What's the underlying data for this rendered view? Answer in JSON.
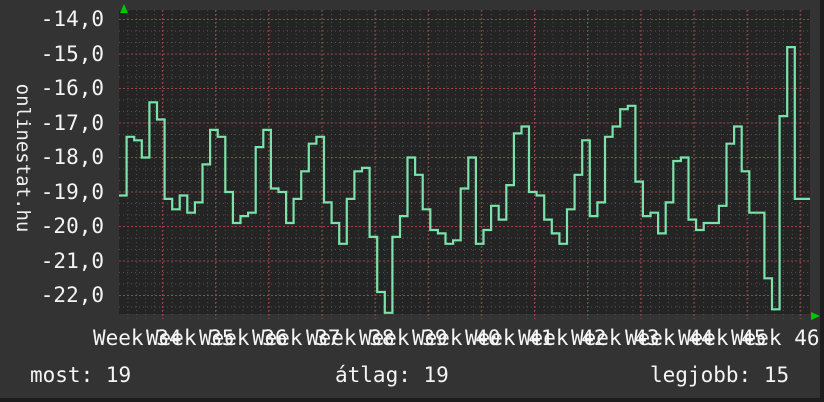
{
  "branding": {
    "site": "onlinestat.hu"
  },
  "stats": {
    "most": {
      "label": "most:",
      "value": "19"
    },
    "atlag": {
      "label": "átlag:",
      "value": "19"
    },
    "legjobb": {
      "label": "legjobb:",
      "value": "15"
    }
  },
  "chart_data": {
    "type": "line",
    "interpolation": "step-after",
    "title": "",
    "xlabel": "",
    "ylabel": "",
    "x_tick_labels": [
      "Week 34",
      "Week 35",
      "Week 36",
      "Week 37",
      "Week 38",
      "Week 39",
      "Week 40",
      "Week 41",
      "Week 42",
      "Week 43",
      "Week 44",
      "Week 45",
      "Week 46"
    ],
    "y_tick_labels": [
      "-14,0",
      "-15,0",
      "-16,0",
      "-17,0",
      "-18,0",
      "-19,0",
      "-20,0",
      "-21,0",
      "-22,0"
    ],
    "y_tick_values": [
      -14,
      -15,
      -16,
      -17,
      -18,
      -19,
      -20,
      -21,
      -22
    ],
    "ylim": [
      -22.8,
      -13.7
    ],
    "grid": true,
    "legend": "none",
    "values": [
      -19.1,
      -17.4,
      -17.5,
      -18.0,
      -16.4,
      -16.9,
      -19.2,
      -19.5,
      -19.1,
      -19.6,
      -19.3,
      -18.2,
      -17.2,
      -17.4,
      -19.0,
      -19.9,
      -19.7,
      -19.6,
      -17.7,
      -17.2,
      -18.9,
      -19.0,
      -19.9,
      -19.2,
      -18.4,
      -17.6,
      -17.4,
      -19.3,
      -19.9,
      -20.5,
      -19.2,
      -18.4,
      -18.3,
      -20.3,
      -21.9,
      -22.5,
      -20.3,
      -19.7,
      -18.0,
      -18.5,
      -19.5,
      -20.1,
      -20.2,
      -20.5,
      -20.4,
      -18.9,
      -18.0,
      -20.5,
      -20.1,
      -19.4,
      -19.8,
      -18.8,
      -17.3,
      -17.1,
      -19.0,
      -19.1,
      -19.8,
      -20.2,
      -20.5,
      -19.5,
      -18.5,
      -17.5,
      -19.7,
      -19.3,
      -17.4,
      -17.1,
      -16.6,
      -16.5,
      -18.7,
      -19.7,
      -19.6,
      -20.2,
      -19.3,
      -18.1,
      -18.0,
      -19.8,
      -20.1,
      -19.9,
      -19.9,
      -19.4,
      -17.6,
      -17.1,
      -18.4,
      -19.6,
      -19.6,
      -21.5,
      -22.4,
      -16.8,
      -14.8,
      -19.2,
      -19.2
    ],
    "colors": {
      "line": "#7be2aa",
      "grid_minor": "#4f4f4f",
      "grid_major": "#9c4343",
      "axis_arrow": "#00c800",
      "plot_bg": "#242424",
      "page_bg": "#333333",
      "text": "#f0f0f0"
    }
  }
}
